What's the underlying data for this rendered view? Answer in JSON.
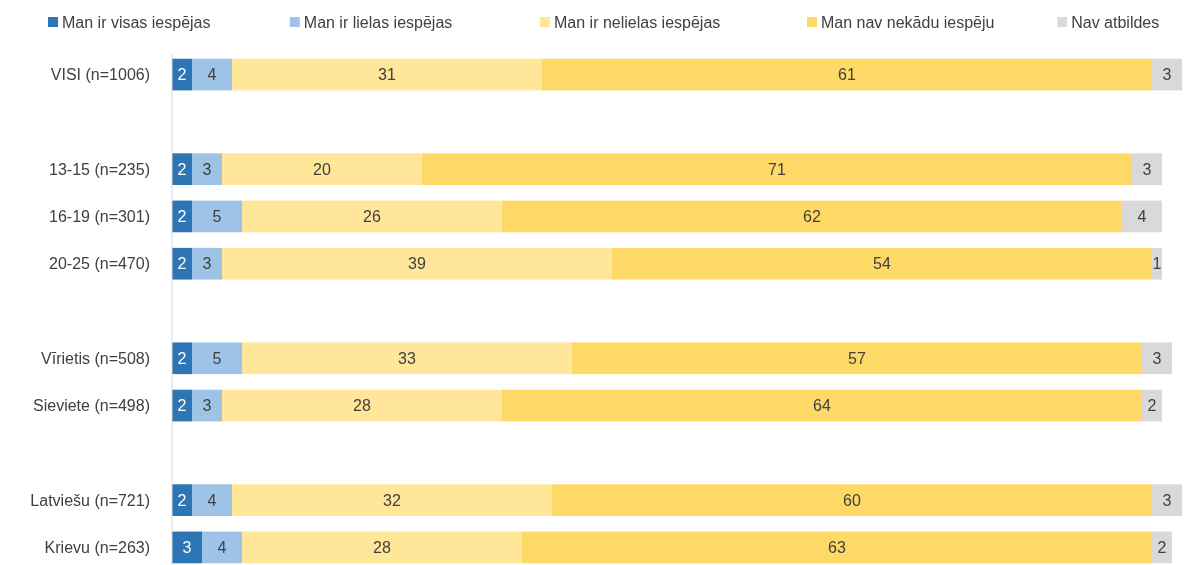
{
  "chart_data": {
    "type": "bar",
    "orientation": "horizontal",
    "stacked": true,
    "data_labels": true,
    "legend": "top",
    "tick_labels": "y",
    "xlim": [
      0,
      101
    ],
    "categories": [
      "VISI (n=1006)",
      null,
      "13-15 (n=235)",
      "16-19 (n=301)",
      "20-25 (n=470)",
      null,
      "Vīrietis (n=508)",
      "Sieviete (n=498)",
      null,
      "Latviešu (n=721)",
      "Krievu (n=263)"
    ],
    "series": [
      {
        "name": "Man ir visas iespējas",
        "color": "#2e75b6",
        "values": [
          2,
          null,
          2,
          2,
          2,
          null,
          2,
          2,
          null,
          2,
          3
        ]
      },
      {
        "name": "Man ir lielas iespējas",
        "color": "#9dc3e6",
        "values": [
          4,
          null,
          3,
          5,
          3,
          null,
          5,
          3,
          null,
          4,
          4
        ]
      },
      {
        "name": "Man ir nelielas iespējas",
        "color": "#ffe699",
        "values": [
          31,
          null,
          20,
          26,
          39,
          null,
          33,
          28,
          null,
          32,
          28
        ]
      },
      {
        "name": "Man nav nekādu iespēju",
        "color": "#ffd966",
        "values": [
          61,
          null,
          71,
          62,
          54,
          null,
          57,
          64,
          null,
          60,
          63
        ]
      },
      {
        "name": "Nav atbildes",
        "color": "#d9d9d9",
        "values": [
          3,
          null,
          3,
          4,
          1,
          null,
          3,
          2,
          null,
          3,
          2
        ]
      }
    ]
  }
}
